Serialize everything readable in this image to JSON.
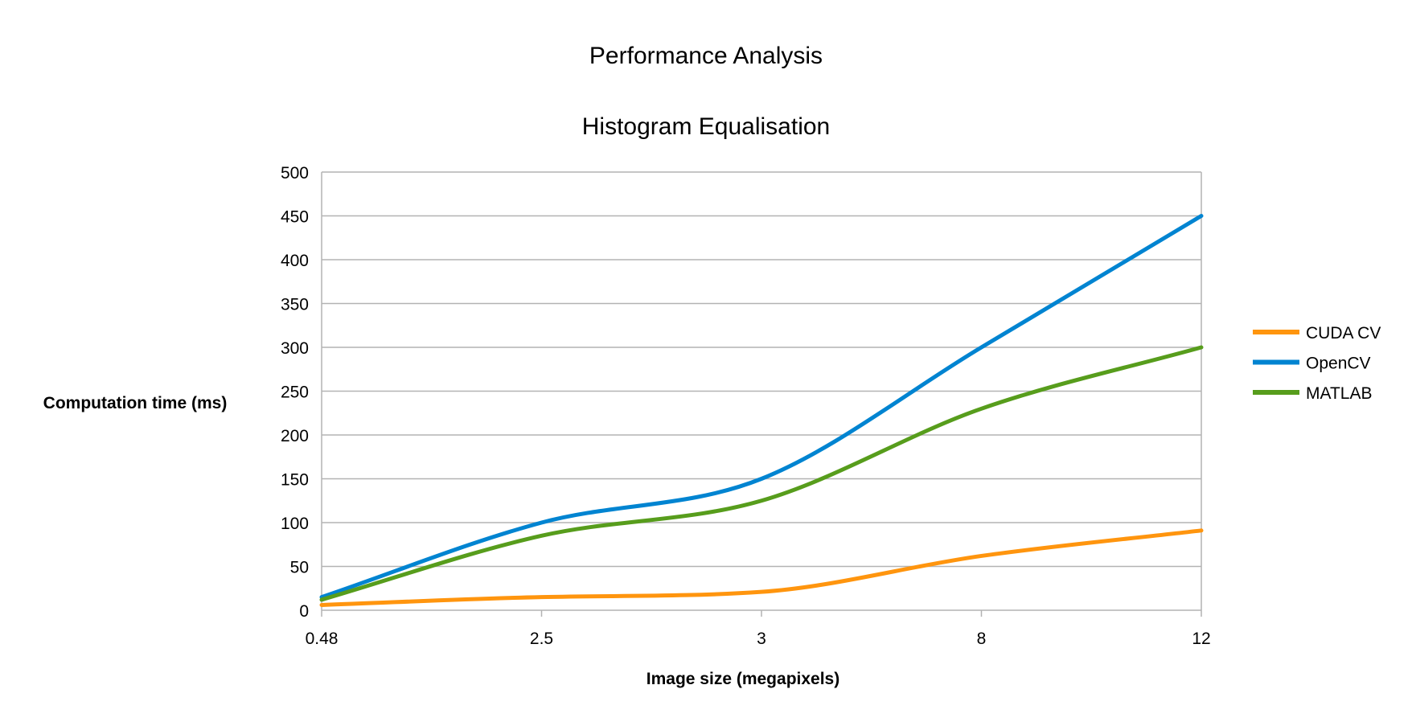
{
  "chart_data": {
    "type": "line",
    "title": "Performance Analysis",
    "subtitle": "Histogram Equalisation",
    "xlabel": "Image size (megapixels)",
    "ylabel": "Computation time (ms)",
    "categories": [
      "0.48",
      "2.5",
      "3",
      "8",
      "12"
    ],
    "ylim": [
      0,
      500
    ],
    "yticks": [
      0,
      50,
      100,
      150,
      200,
      250,
      300,
      350,
      400,
      450,
      500
    ],
    "grid": true,
    "legend_position": "right",
    "smooth": true,
    "series": [
      {
        "name": "CUDA CV",
        "color": "#ff950e",
        "values": [
          6,
          15,
          21,
          62,
          91
        ]
      },
      {
        "name": "OpenCV",
        "color": "#0084d1",
        "values": [
          15,
          100,
          150,
          300,
          450
        ]
      },
      {
        "name": "MATLAB",
        "color": "#579d1c",
        "values": [
          12,
          85,
          125,
          230,
          300
        ]
      }
    ]
  }
}
